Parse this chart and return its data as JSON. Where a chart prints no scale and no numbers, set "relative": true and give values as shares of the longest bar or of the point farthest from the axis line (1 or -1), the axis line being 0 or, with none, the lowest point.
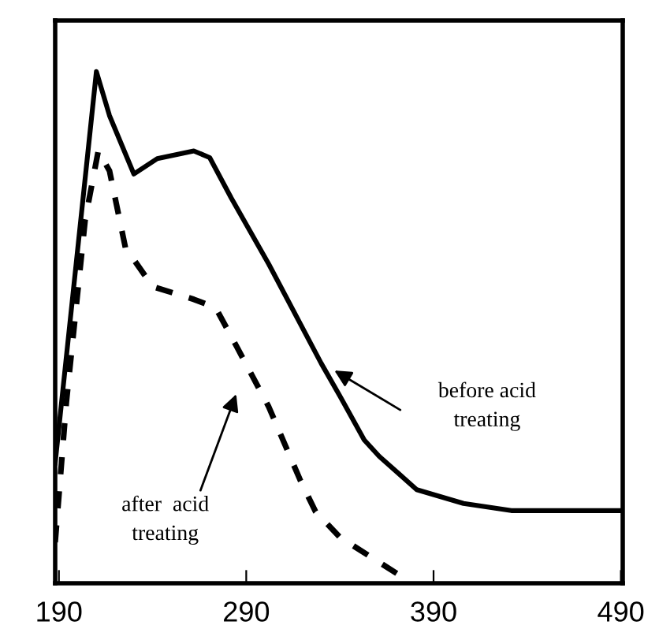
{
  "chart_data": {
    "type": "line",
    "relative": true,
    "xlim": [
      188,
      491
    ],
    "xticks": [
      190,
      290,
      390,
      490
    ],
    "series": [
      {
        "color": "#000000",
        "line_style": "solid",
        "x": [
          188,
          210,
          217,
          230,
          242.5,
          262,
          270.5,
          282,
          302,
          330,
          340,
          353,
          361,
          381,
          406,
          431.5,
          491
        ],
        "values": [
          0.235,
          1.0,
          0.914,
          0.8,
          0.83,
          0.845,
          0.832,
          0.753,
          0.624,
          0.43,
          0.366,
          0.28,
          0.248,
          0.183,
          0.156,
          0.142,
          0.142
        ]
      },
      {
        "color": "#000000",
        "line_style": "dashed",
        "x": [
          188,
          194,
          204,
          211,
          217,
          225.5,
          240,
          262,
          273.6,
          285,
          302,
          319,
          327,
          340,
          355,
          376
        ],
        "values": [
          0.08,
          0.355,
          0.71,
          0.845,
          0.806,
          0.656,
          0.58,
          0.555,
          0.539,
          0.462,
          0.345,
          0.2,
          0.14,
          0.09,
          0.055,
          0.006
        ]
      }
    ],
    "annotations": [
      "before acid\ntreating",
      "after  acid\ntreating"
    ],
    "grid": false,
    "legend": false
  }
}
